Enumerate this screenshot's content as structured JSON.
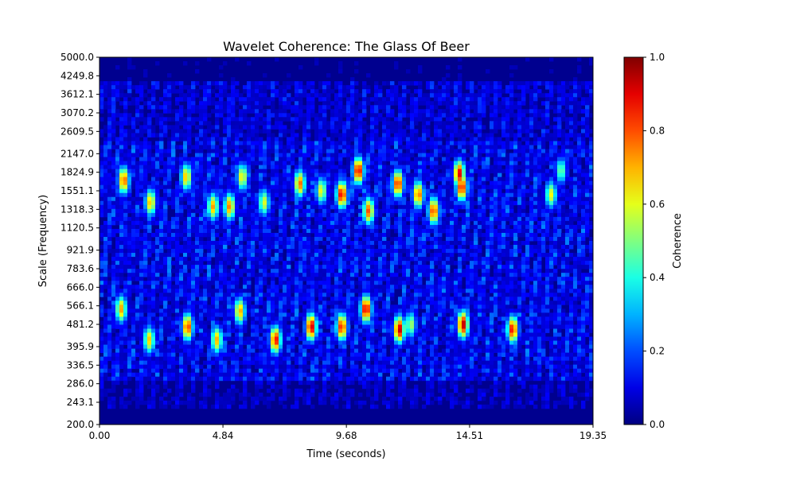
{
  "chart_data": {
    "type": "heatmap",
    "title": "Wavelet Coherence: The Glass Of Beer",
    "xlabel": "Time (seconds)",
    "ylabel": "Scale (Frequency)",
    "x_ticks": [
      "0.00",
      "4.84",
      "9.68",
      "14.51",
      "19.35"
    ],
    "x_tick_values": [
      0.0,
      4.84,
      9.68,
      14.51,
      19.35
    ],
    "xlim": [
      0.0,
      19.35
    ],
    "y_ticks": [
      "200.0",
      "243.1",
      "286.0",
      "336.5",
      "395.9",
      "481.2",
      "566.1",
      "666.0",
      "783.6",
      "921.9",
      "1120.5",
      "1318.3",
      "1551.1",
      "1824.9",
      "2147.0",
      "2609.5",
      "3070.2",
      "3612.1",
      "4249.8",
      "5000.0"
    ],
    "y_tick_values": [
      200.0,
      243.1,
      286.0,
      336.5,
      395.9,
      481.2,
      566.1,
      666.0,
      783.6,
      921.9,
      1120.5,
      1318.3,
      1551.1,
      1824.9,
      2147.0,
      2609.5,
      3070.2,
      3612.1,
      4249.8,
      5000.0
    ],
    "y_scale": "log",
    "ylim": [
      200.0,
      5000.0
    ],
    "colormap": "jet",
    "value_range": [
      0.0,
      1.0
    ],
    "background_value": 0.0,
    "colorbar": {
      "label": "Coherence",
      "ticks": [
        "0.0",
        "0.2",
        "0.4",
        "0.6",
        "0.8",
        "1.0"
      ],
      "tick_values": [
        0.0,
        0.2,
        0.4,
        0.6,
        0.8,
        1.0
      ]
    },
    "hotspots": [
      {
        "t": 0.95,
        "scale": 1700,
        "value": 0.82
      },
      {
        "t": 0.85,
        "scale": 550,
        "value": 0.72
      },
      {
        "t": 2.0,
        "scale": 1400,
        "value": 0.7
      },
      {
        "t": 1.95,
        "scale": 420,
        "value": 0.68
      },
      {
        "t": 3.4,
        "scale": 1750,
        "value": 0.7
      },
      {
        "t": 3.45,
        "scale": 470,
        "value": 0.85
      },
      {
        "t": 4.45,
        "scale": 1350,
        "value": 0.72
      },
      {
        "t": 4.6,
        "scale": 420,
        "value": 0.7
      },
      {
        "t": 5.1,
        "scale": 1350,
        "value": 0.76
      },
      {
        "t": 5.6,
        "scale": 1750,
        "value": 0.65
      },
      {
        "t": 5.5,
        "scale": 540,
        "value": 0.72
      },
      {
        "t": 6.45,
        "scale": 1400,
        "value": 0.6
      },
      {
        "t": 6.9,
        "scale": 420,
        "value": 0.9
      },
      {
        "t": 7.85,
        "scale": 1650,
        "value": 0.78
      },
      {
        "t": 8.3,
        "scale": 470,
        "value": 0.95
      },
      {
        "t": 8.7,
        "scale": 1550,
        "value": 0.62
      },
      {
        "t": 9.5,
        "scale": 1500,
        "value": 0.92
      },
      {
        "t": 9.5,
        "scale": 470,
        "value": 0.88
      },
      {
        "t": 10.15,
        "scale": 1850,
        "value": 0.93
      },
      {
        "t": 10.45,
        "scale": 550,
        "value": 0.95
      },
      {
        "t": 10.55,
        "scale": 1300,
        "value": 0.8
      },
      {
        "t": 11.7,
        "scale": 1650,
        "value": 0.88
      },
      {
        "t": 11.75,
        "scale": 460,
        "value": 0.95
      },
      {
        "t": 12.2,
        "scale": 480,
        "value": 0.55
      },
      {
        "t": 12.5,
        "scale": 1500,
        "value": 0.8
      },
      {
        "t": 13.1,
        "scale": 1300,
        "value": 0.85
      },
      {
        "t": 14.1,
        "scale": 1800,
        "value": 0.92
      },
      {
        "t": 14.2,
        "scale": 1600,
        "value": 0.9
      },
      {
        "t": 14.25,
        "scale": 480,
        "value": 0.96
      },
      {
        "t": 16.2,
        "scale": 460,
        "value": 0.9
      },
      {
        "t": 17.7,
        "scale": 1500,
        "value": 0.62
      },
      {
        "t": 18.1,
        "scale": 1850,
        "value": 0.5
      }
    ]
  }
}
